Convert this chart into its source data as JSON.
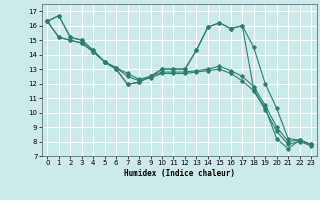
{
  "title": "",
  "xlabel": "Humidex (Indice chaleur)",
  "bg_color": "#cceaea",
  "grid_color": "#ffffff",
  "line_color": "#2e7d6e",
  "xlim": [
    -0.5,
    23.5
  ],
  "ylim": [
    7,
    17.5
  ],
  "yticks": [
    7,
    8,
    9,
    10,
    11,
    12,
    13,
    14,
    15,
    16,
    17
  ],
  "xticks": [
    0,
    1,
    2,
    3,
    4,
    5,
    6,
    7,
    8,
    9,
    10,
    11,
    12,
    13,
    14,
    15,
    16,
    17,
    18,
    19,
    20,
    21,
    22,
    23
  ],
  "s1": [
    16.3,
    16.7,
    15.2,
    15.0,
    14.3,
    13.5,
    13.0,
    11.95,
    12.1,
    12.5,
    13.0,
    13.0,
    13.0,
    14.3,
    15.9,
    16.2,
    15.8,
    16.0,
    11.6,
    10.3,
    8.2,
    7.5,
    8.1,
    7.8
  ],
  "s2": [
    16.3,
    16.7,
    15.2,
    15.0,
    14.3,
    13.5,
    13.0,
    11.95,
    12.1,
    12.5,
    13.0,
    13.0,
    13.0,
    14.3,
    15.9,
    16.2,
    15.8,
    16.0,
    14.5,
    12.0,
    10.3,
    8.2,
    8.1,
    7.8
  ],
  "s3": [
    16.3,
    15.2,
    15.0,
    14.8,
    14.2,
    13.5,
    13.1,
    12.7,
    12.3,
    12.5,
    12.8,
    12.8,
    12.8,
    12.9,
    13.0,
    13.2,
    12.9,
    12.5,
    11.8,
    10.5,
    9.0,
    8.0,
    8.1,
    7.8
  ],
  "s4": [
    16.3,
    15.2,
    15.0,
    14.8,
    14.2,
    13.5,
    13.1,
    12.5,
    12.2,
    12.4,
    12.7,
    12.7,
    12.7,
    12.8,
    12.9,
    13.0,
    12.7,
    12.2,
    11.5,
    10.2,
    8.7,
    7.8,
    8.0,
    7.7
  ]
}
